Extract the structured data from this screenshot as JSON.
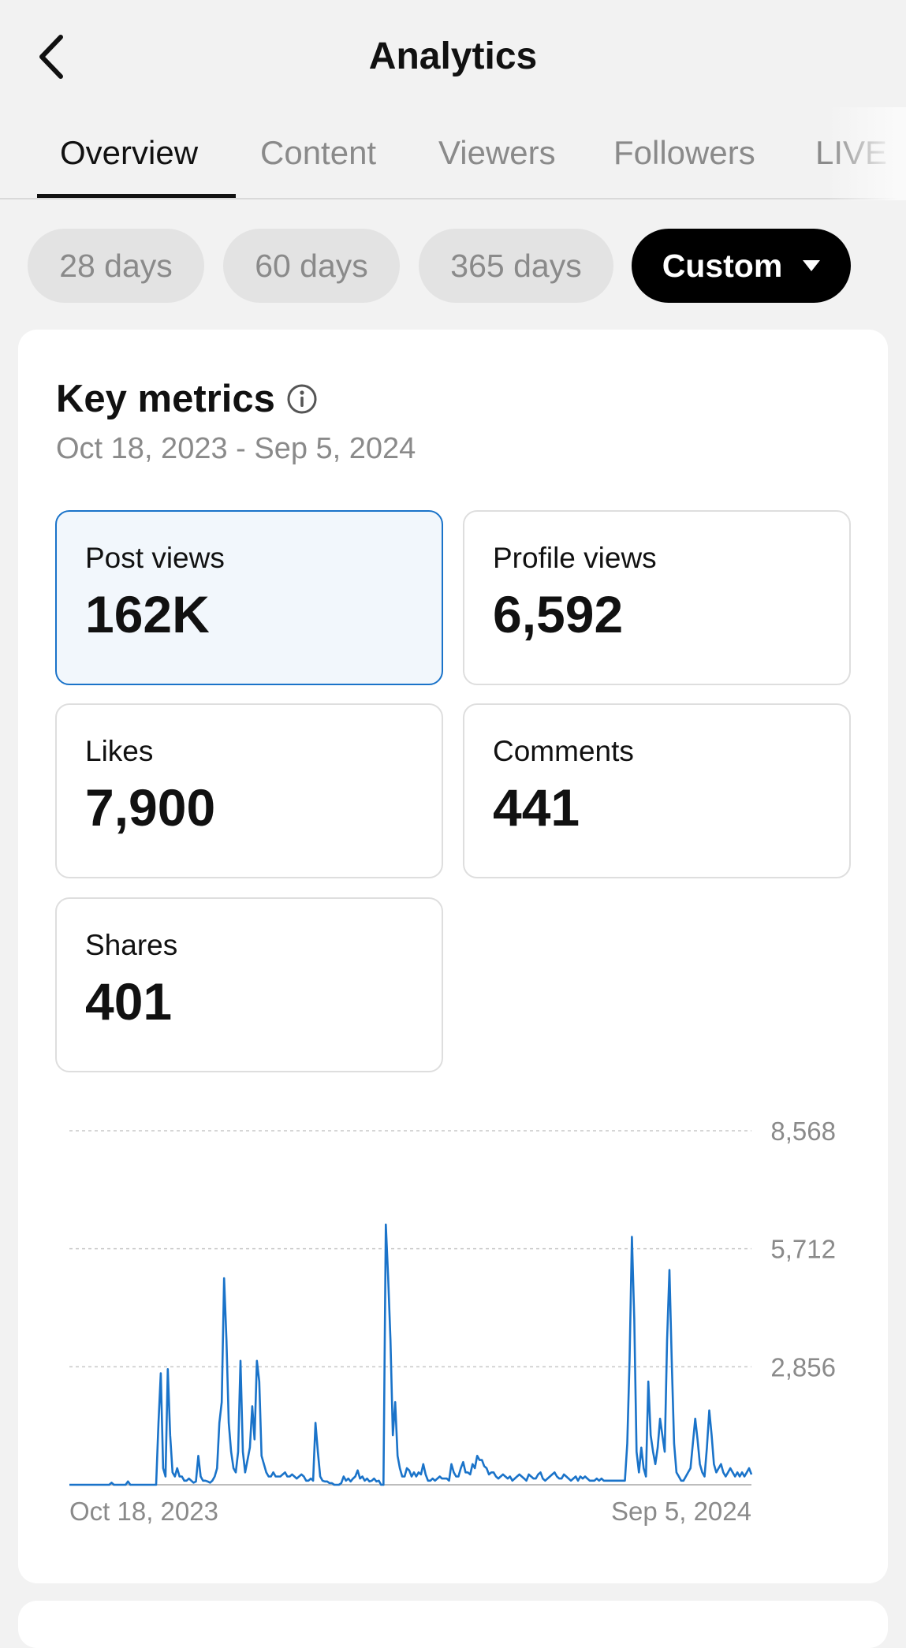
{
  "header": {
    "title": "Analytics"
  },
  "tabs": [
    {
      "label": "Overview",
      "active": true
    },
    {
      "label": "Content",
      "active": false
    },
    {
      "label": "Viewers",
      "active": false
    },
    {
      "label": "Followers",
      "active": false
    },
    {
      "label": "LIVE",
      "active": false
    }
  ],
  "ranges": [
    {
      "label": "28 days",
      "selected": false
    },
    {
      "label": "60 days",
      "selected": false
    },
    {
      "label": "365 days",
      "selected": false
    },
    {
      "label": "Custom",
      "selected": true
    }
  ],
  "key_metrics": {
    "title": "Key metrics",
    "date_range": "Oct 18, 2023 - Sep 5, 2024",
    "metrics": [
      {
        "label": "Post views",
        "value": "162K",
        "selected": true
      },
      {
        "label": "Profile views",
        "value": "6,592",
        "selected": false
      },
      {
        "label": "Likes",
        "value": "7,900",
        "selected": false
      },
      {
        "label": "Comments",
        "value": "441",
        "selected": false
      },
      {
        "label": "Shares",
        "value": "401",
        "selected": false
      }
    ]
  },
  "colors": {
    "accent": "#1a73c9",
    "selected_chip": "#000000",
    "chip": "#e3e3e3"
  },
  "chart_data": {
    "type": "line",
    "series": [
      {
        "values": [
          0,
          0,
          0,
          0,
          0,
          0,
          0,
          0,
          0,
          0,
          0,
          0,
          0,
          0,
          0,
          0,
          0,
          0,
          50,
          0,
          0,
          0,
          0,
          0,
          0,
          80,
          0,
          0,
          0,
          0,
          0,
          0,
          0,
          0,
          0,
          0,
          0,
          0,
          1500,
          2700,
          400,
          200,
          2800,
          1200,
          300,
          200,
          400,
          200,
          200,
          100,
          100,
          150,
          100,
          50,
          80,
          700,
          200,
          100,
          100,
          80,
          50,
          100,
          200,
          400,
          1500,
          2000,
          5000,
          3500,
          1500,
          800,
          400,
          300,
          800,
          3000,
          800,
          300,
          600,
          900,
          1900,
          1100,
          3000,
          2500,
          700,
          500,
          300,
          200,
          200,
          300,
          200,
          200,
          200,
          250,
          300,
          200,
          200,
          250,
          200,
          150,
          200,
          250,
          200,
          100,
          100,
          150,
          100,
          1500,
          800,
          200,
          100,
          80,
          80,
          40,
          40,
          0,
          0,
          0,
          40,
          200,
          100,
          150,
          80,
          150,
          200,
          350,
          150,
          200,
          100,
          150,
          80,
          100,
          150,
          80,
          100,
          0,
          0,
          6300,
          5000,
          3500,
          1200,
          2000,
          700,
          400,
          200,
          200,
          400,
          350,
          200,
          300,
          200,
          300,
          250,
          500,
          250,
          100,
          100,
          150,
          100,
          150,
          200,
          150,
          150,
          150,
          100,
          500,
          300,
          200,
          200,
          400,
          550,
          300,
          300,
          250,
          500,
          400,
          700,
          600,
          600,
          450,
          400,
          250,
          300,
          300,
          200,
          150,
          200,
          250,
          200,
          150,
          200,
          100,
          150,
          200,
          250,
          200,
          150,
          100,
          250,
          200,
          150,
          150,
          250,
          300,
          150,
          100,
          150,
          200,
          250,
          300,
          200,
          150,
          150,
          250,
          200,
          150,
          100,
          150,
          200,
          100,
          200,
          150,
          200,
          150,
          100,
          100,
          100,
          150,
          100,
          150,
          100,
          100,
          100,
          100,
          100,
          100,
          100,
          100,
          100,
          100,
          1000,
          3000,
          6000,
          4000,
          800,
          300,
          900,
          400,
          200,
          2500,
          1200,
          800,
          500,
          900,
          1600,
          1200,
          800,
          3500,
          5200,
          3000,
          1000,
          300,
          200,
          100,
          100,
          200,
          300,
          400,
          1000,
          1600,
          1100,
          500,
          300,
          200,
          900,
          1800,
          1200,
          500,
          300,
          400,
          500,
          300,
          200,
          300,
          400,
          300,
          200,
          300,
          200,
          300,
          200,
          300,
          400,
          250
        ]
      }
    ],
    "x_labels": [
      "Oct 18, 2023",
      "Sep 5, 2024"
    ],
    "y_ticks": [
      0,
      2856,
      5712,
      8568
    ],
    "y_tick_labels": [
      "2,856",
      "5,712",
      "8,568"
    ],
    "ylim": [
      0,
      8568
    ],
    "grid": true
  }
}
